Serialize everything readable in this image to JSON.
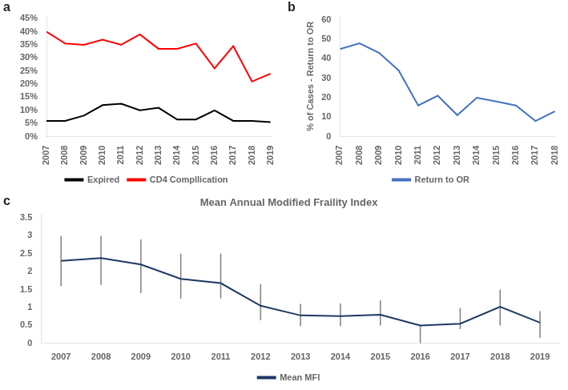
{
  "chart_data": [
    {
      "type": "line",
      "annotations": [
        "a"
      ],
      "x": [
        2007,
        2008,
        2009,
        2010,
        2011,
        2012,
        2013,
        2014,
        2015,
        2016,
        2017,
        2018,
        2019
      ],
      "series": [
        {
          "name": "Expired",
          "color": "#000000",
          "values": [
            0.06,
            0.06,
            0.08,
            0.12,
            0.125,
            0.1,
            0.11,
            0.065,
            0.065,
            0.1,
            0.06,
            0.06,
            0.055
          ]
        },
        {
          "name": "CD4 Compllication",
          "color": "#FF0000",
          "values": [
            0.4,
            0.355,
            0.35,
            0.37,
            0.35,
            0.39,
            0.335,
            0.335,
            0.355,
            0.26,
            0.345,
            0.21,
            0.24
          ]
        }
      ],
      "xlim": [
        2007,
        2019
      ],
      "xticks": [
        2007,
        2008,
        2009,
        2010,
        2011,
        2012,
        2013,
        2014,
        2015,
        2016,
        2017,
        2018,
        2019
      ],
      "ylim": [
        0,
        0.46
      ],
      "yticks": [
        {
          "value": 0.0,
          "label": "0%"
        },
        {
          "value": 0.05,
          "label": "5%"
        },
        {
          "value": 0.1,
          "label": "10%"
        },
        {
          "value": 0.15,
          "label": "15%"
        },
        {
          "value": 0.2,
          "label": "20%"
        },
        {
          "value": 0.25,
          "label": "25%"
        },
        {
          "value": 0.3,
          "label": "30%"
        },
        {
          "value": 0.35,
          "label": "35%"
        },
        {
          "value": 0.4,
          "label": "40%"
        },
        {
          "value": 0.45,
          "label": "45%"
        }
      ],
      "grid": false,
      "legend": "bottom"
    },
    {
      "type": "line",
      "annotations": [
        "b"
      ],
      "y_label": "% of Cases - Return to OR",
      "x": [
        2007,
        2008,
        2009,
        2010,
        2011,
        2012,
        2013,
        2014,
        2015,
        2016,
        2017,
        2018
      ],
      "series": [
        {
          "name": "Return to OR",
          "color": "#4472C4",
          "values": [
            45,
            48,
            43,
            34,
            16,
            21,
            11,
            20,
            18,
            16,
            8,
            13
          ]
        }
      ],
      "xlim": [
        2007,
        2018
      ],
      "xticks": [
        2007,
        2008,
        2009,
        2010,
        2011,
        2012,
        2013,
        2014,
        2015,
        2016,
        2017,
        2018
      ],
      "ylim": [
        0,
        62
      ],
      "yticks": [
        0,
        10,
        20,
        30,
        40,
        50,
        60
      ],
      "grid": false,
      "legend": "bottom"
    },
    {
      "type": "line",
      "title": "Mean Annual Modified Fraility Index",
      "annotations": [
        "c"
      ],
      "x": [
        2007,
        2008,
        2009,
        2010,
        2011,
        2012,
        2013,
        2014,
        2015,
        2016,
        2017,
        2018,
        2019
      ],
      "series": [
        {
          "name": "Mean MFI",
          "color": "#1F3864",
          "values": [
            2.3,
            2.38,
            2.2,
            1.8,
            1.68,
            1.05,
            0.78,
            0.76,
            0.8,
            0.5,
            0.55,
            1.02,
            0.58
          ],
          "err_low": [
            0.7,
            0.75,
            0.8,
            0.55,
            0.42,
            0.4,
            0.3,
            0.28,
            0.3,
            0.5,
            0.15,
            0.52,
            0.42
          ],
          "err_high": [
            0.7,
            0.62,
            0.7,
            0.7,
            0.82,
            0.6,
            0.32,
            0.36,
            0.4,
            0.0,
            0.44,
            0.48,
            0.32
          ]
        }
      ],
      "xlim": [
        2006.5,
        2019.5
      ],
      "xticks": [
        2007,
        2008,
        2009,
        2010,
        2011,
        2012,
        2013,
        2014,
        2015,
        2016,
        2017,
        2018,
        2019
      ],
      "ylim": [
        0,
        3.6
      ],
      "yticks": [
        0,
        0.5,
        1,
        1.5,
        2,
        2.5,
        3,
        3.5
      ],
      "grid": false,
      "legend": "bottom"
    }
  ]
}
